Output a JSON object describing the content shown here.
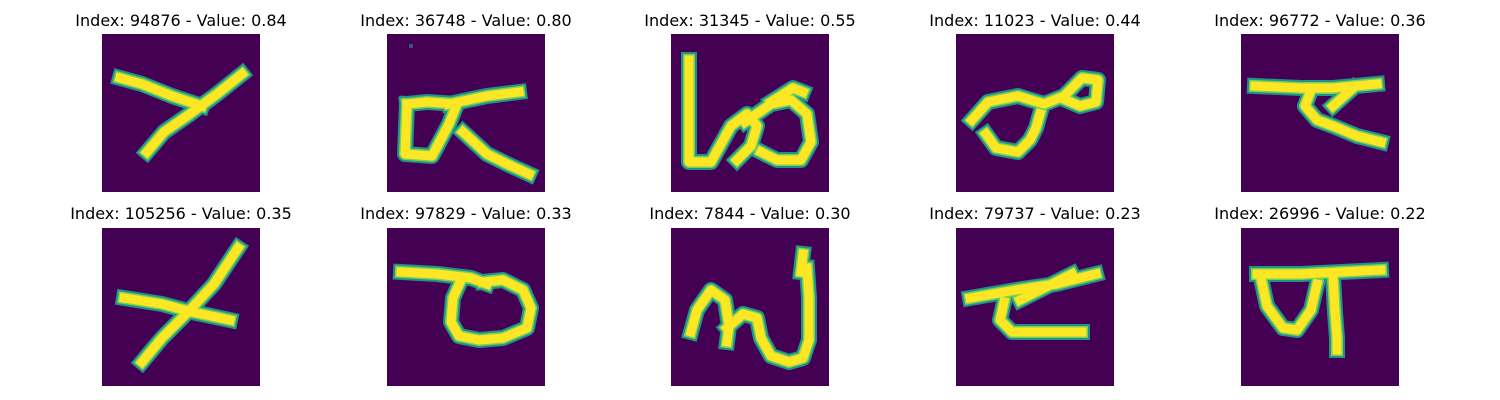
{
  "panels": [
    {
      "index": 94876,
      "value": 0.84,
      "title": "Index: 94876 - Value: 0.84"
    },
    {
      "index": 36748,
      "value": 0.8,
      "title": "Index: 36748 - Value: 0.80"
    },
    {
      "index": 31345,
      "value": 0.55,
      "title": "Index: 31345 - Value: 0.55"
    },
    {
      "index": 11023,
      "value": 0.44,
      "title": "Index: 11023 - Value: 0.44"
    },
    {
      "index": 96772,
      "value": 0.36,
      "title": "Index: 96772 - Value: 0.36"
    },
    {
      "index": 105256,
      "value": 0.35,
      "title": "Index: 105256 - Value: 0.35"
    },
    {
      "index": 97829,
      "value": 0.33,
      "title": "Index: 97829 - Value: 0.33"
    },
    {
      "index": 7844,
      "value": 0.3,
      "title": "Index: 7844 - Value: 0.30"
    },
    {
      "index": 79737,
      "value": 0.23,
      "title": "Index: 79737 - Value: 0.23"
    },
    {
      "index": 26996,
      "value": 0.22,
      "title": "Index: 26996 - Value: 0.22"
    }
  ],
  "colors": {
    "background": "#440154",
    "stroke_outer": "#21918c",
    "stroke_mid": "#7ad151",
    "stroke_core": "#fde725"
  }
}
